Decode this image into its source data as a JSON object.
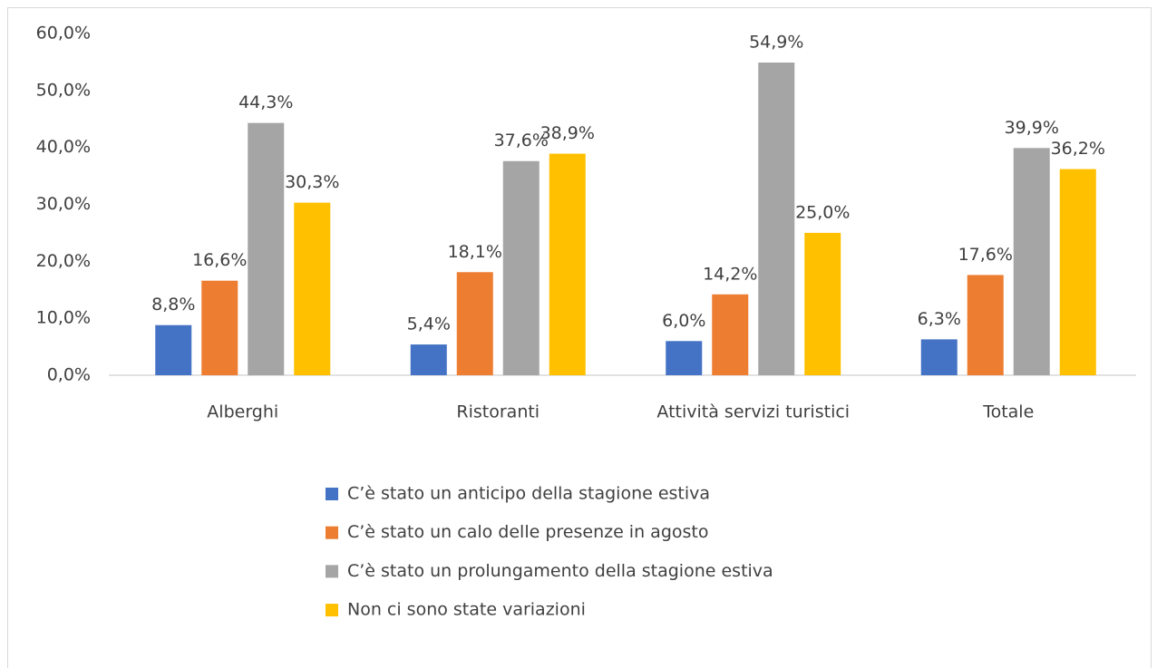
{
  "chart_data": {
    "type": "bar",
    "categories": [
      "Alberghi",
      "Ristoranti",
      "Attività servizi turistici",
      "Totale"
    ],
    "series": [
      {
        "name": "C’è stato un anticipo della stagione estiva",
        "color": "#4472c4",
        "values": [
          8.8,
          5.4,
          6.0,
          6.3
        ],
        "value_labels": [
          "8,8%",
          "5,4%",
          "6,0%",
          "6,3%"
        ]
      },
      {
        "name": "C’è stato un calo delle presenze in agosto",
        "color": "#ed7d31",
        "values": [
          16.6,
          18.1,
          14.2,
          17.6
        ],
        "value_labels": [
          "16,6%",
          "18,1%",
          "14,2%",
          "17,6%"
        ]
      },
      {
        "name": "C’è stato un prolungamento della stagione estiva",
        "color": "#a5a5a5",
        "values": [
          44.3,
          37.6,
          54.9,
          39.9
        ],
        "value_labels": [
          "44,3%",
          "37,6%",
          "54,9%",
          "39,9%"
        ]
      },
      {
        "name": "Non ci sono state variazioni",
        "color": "#ffc000",
        "values": [
          30.3,
          38.9,
          25.0,
          36.2
        ],
        "value_labels": [
          "30,3%",
          "38,9%",
          "25,0%",
          "36,2%"
        ]
      }
    ],
    "ylim": [
      0,
      60
    ],
    "yticks": [
      {
        "value": 0,
        "label": "0,0%"
      },
      {
        "value": 10,
        "label": "10,0%"
      },
      {
        "value": 20,
        "label": "20,0%"
      },
      {
        "value": 30,
        "label": "30,0%"
      },
      {
        "value": 40,
        "label": "40,0%"
      },
      {
        "value": 50,
        "label": "50,0%"
      },
      {
        "value": 60,
        "label": "60,0%"
      }
    ],
    "grid": false,
    "legend": "bottom"
  }
}
